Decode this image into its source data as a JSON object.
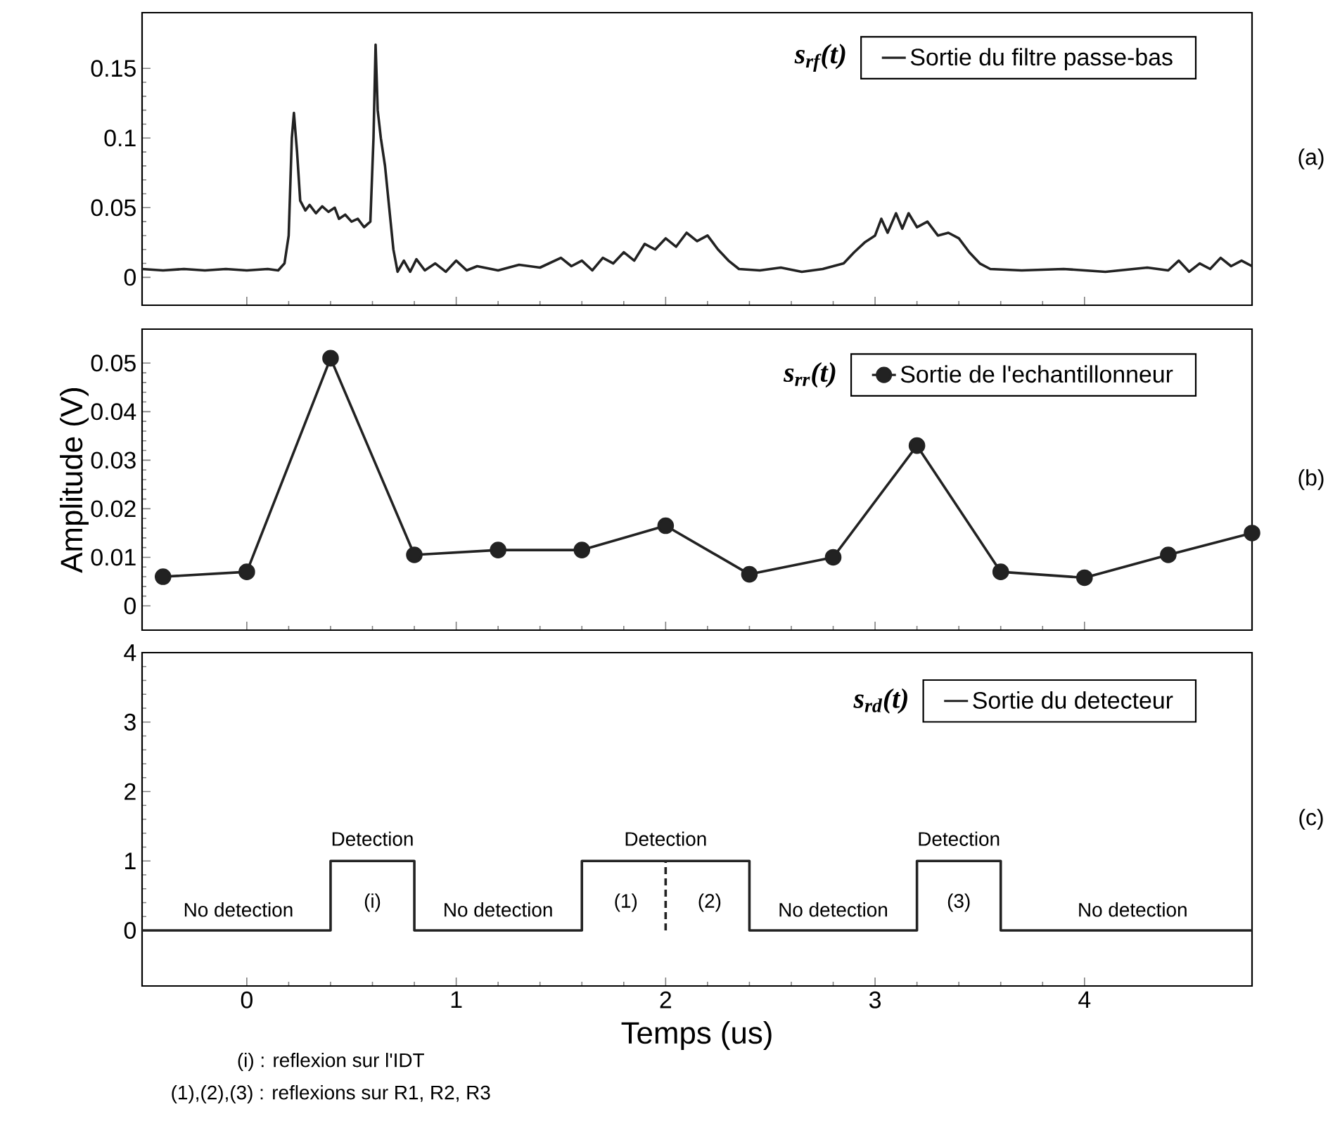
{
  "chart_data": [
    {
      "type": "line",
      "xlim": [
        -0.5,
        4.8
      ],
      "ylim": [
        -0.02,
        0.19
      ],
      "xticks": [
        0,
        1,
        2,
        3,
        4
      ],
      "yticks": [
        0,
        0.05,
        0.1,
        0.15
      ],
      "tick_labels": "y",
      "legend": "top right",
      "legend_title": "s$_{rf}$(t)",
      "series": [
        {
          "name": "Sortie du filtre passe-bas",
          "color": "#222222",
          "x": [
            -0.5,
            -0.4,
            -0.3,
            -0.2,
            -0.1,
            0,
            0.1,
            0.15,
            0.18,
            0.2,
            0.215,
            0.225,
            0.24,
            0.255,
            0.28,
            0.3,
            0.33,
            0.36,
            0.39,
            0.42,
            0.44,
            0.47,
            0.5,
            0.53,
            0.56,
            0.59,
            0.605,
            0.615,
            0.625,
            0.64,
            0.66,
            0.68,
            0.7,
            0.72,
            0.75,
            0.78,
            0.81,
            0.85,
            0.9,
            0.95,
            1.0,
            1.05,
            1.1,
            1.2,
            1.3,
            1.4,
            1.5,
            1.55,
            1.6,
            1.65,
            1.7,
            1.75,
            1.8,
            1.85,
            1.9,
            1.95,
            2.0,
            2.05,
            2.1,
            2.15,
            2.2,
            2.25,
            2.3,
            2.35,
            2.45,
            2.55,
            2.65,
            2.75,
            2.85,
            2.9,
            2.95,
            3.0,
            3.03,
            3.06,
            3.1,
            3.13,
            3.16,
            3.2,
            3.25,
            3.3,
            3.35,
            3.4,
            3.45,
            3.5,
            3.55,
            3.7,
            3.9,
            4.1,
            4.3,
            4.4,
            4.45,
            4.5,
            4.55,
            4.6,
            4.65,
            4.7,
            4.75,
            4.8
          ],
          "values": [
            0.006,
            0.005,
            0.006,
            0.005,
            0.006,
            0.005,
            0.006,
            0.005,
            0.01,
            0.03,
            0.1,
            0.118,
            0.09,
            0.055,
            0.048,
            0.052,
            0.046,
            0.051,
            0.047,
            0.05,
            0.042,
            0.045,
            0.04,
            0.042,
            0.036,
            0.04,
            0.1,
            0.167,
            0.12,
            0.1,
            0.08,
            0.05,
            0.02,
            0.004,
            0.012,
            0.004,
            0.013,
            0.005,
            0.01,
            0.004,
            0.012,
            0.005,
            0.008,
            0.005,
            0.009,
            0.007,
            0.014,
            0.008,
            0.012,
            0.005,
            0.014,
            0.01,
            0.018,
            0.012,
            0.024,
            0.02,
            0.028,
            0.022,
            0.032,
            0.026,
            0.03,
            0.02,
            0.012,
            0.006,
            0.005,
            0.007,
            0.004,
            0.006,
            0.01,
            0.018,
            0.025,
            0.03,
            0.042,
            0.032,
            0.046,
            0.035,
            0.046,
            0.036,
            0.04,
            0.03,
            0.032,
            0.028,
            0.018,
            0.01,
            0.006,
            0.005,
            0.006,
            0.004,
            0.007,
            0.005,
            0.012,
            0.004,
            0.01,
            0.006,
            0.014,
            0.008,
            0.012,
            0.008
          ]
        }
      ],
      "annotations": [
        "(a)"
      ]
    },
    {
      "type": "line",
      "xlim": [
        -0.5,
        4.8
      ],
      "ylim": [
        -0.005,
        0.057
      ],
      "xticks": [
        0,
        1,
        2,
        3,
        4
      ],
      "yticks": [
        0,
        0.01,
        0.02,
        0.03,
        0.04,
        0.05
      ],
      "tick_labels": "y",
      "legend": "top right",
      "legend_title": "s$_{rr}$(t)",
      "ylabel": "Amplitude (V)",
      "marker": "circle",
      "series": [
        {
          "name": "Sortie de l'echantillonneur",
          "color": "#222222",
          "x": [
            -0.4,
            0,
            0.4,
            0.8,
            1.2,
            1.6,
            2.0,
            2.4,
            2.8,
            3.2,
            3.6,
            4.0,
            4.4,
            4.8
          ],
          "values": [
            0.006,
            0.007,
            0.051,
            0.0105,
            0.0115,
            0.0115,
            0.0165,
            0.0065,
            0.01,
            0.033,
            0.007,
            0.0058,
            0.0105,
            0.015
          ]
        }
      ],
      "annotations": [
        "(b)"
      ]
    },
    {
      "type": "step",
      "xlim": [
        -0.5,
        4.8
      ],
      "ylim": [
        -0.8,
        4
      ],
      "xticks": [
        0,
        1,
        2,
        3,
        4
      ],
      "yticks": [
        0,
        1,
        2,
        3,
        4
      ],
      "legend": "top right",
      "legend_title": "s$_{rd}$(t)",
      "xlabel": "Temps (us)",
      "series": [
        {
          "name": "Sortie du detecteur",
          "color": "#222222",
          "x": [
            -0.5,
            0.4,
            0.8,
            1.6,
            2.4,
            3.2,
            3.6,
            4.8
          ],
          "values": [
            0,
            1,
            0,
            1,
            0,
            1,
            0,
            0
          ]
        },
        {
          "type": "line",
          "color": "#222222",
          "line_style": "dashed",
          "x": [
            2,
            2
          ],
          "values": [
            0,
            1
          ]
        }
      ],
      "annotations": [
        "(c)",
        "(i) : reflexion sur l'IDT",
        "(1),(2),(3) : reflexions sur R1, R2, R3",
        "No detection",
        "Detection",
        "(i)",
        "No detection",
        "Detection",
        "(1)",
        "(2)",
        "No detection",
        "Detection",
        "(3)",
        "No detection"
      ]
    }
  ]
}
